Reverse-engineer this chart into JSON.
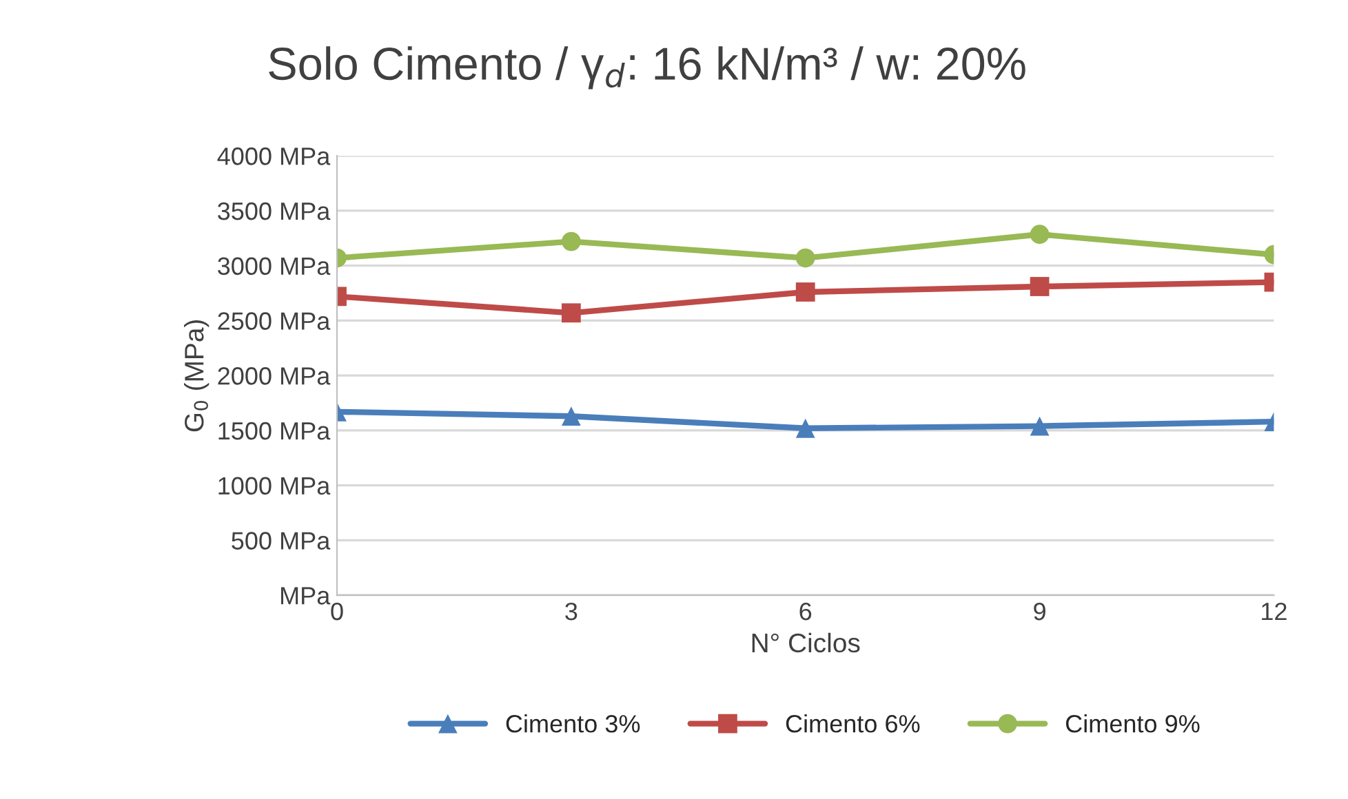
{
  "chart_data": {
    "type": "line",
    "title": "Solo Cimento / γ$_{d}$: 16 kN/m³ / w: 20%",
    "xlabel": "N° Ciclos",
    "ylabel": "G$_{0}$ (MPa)",
    "x": [
      0,
      3,
      6,
      9,
      12
    ],
    "xlim": [
      0,
      12
    ],
    "xticks": [
      0,
      3,
      6,
      9,
      12
    ],
    "ylim": [
      0,
      4000
    ],
    "yticks": [
      {
        "value": 0,
        "label": "MPa"
      },
      {
        "value": 500,
        "label": "500 MPa"
      },
      {
        "value": 1000,
        "label": "1000 MPa"
      },
      {
        "value": 1500,
        "label": "1500 MPa"
      },
      {
        "value": 2000,
        "label": "2000 MPa"
      },
      {
        "value": 2500,
        "label": "2500 MPa"
      },
      {
        "value": 3000,
        "label": "3000 MPa"
      },
      {
        "value": 3500,
        "label": "3500 MPa"
      },
      {
        "value": 4000,
        "label": "4000 MPa"
      }
    ],
    "grid": "y",
    "legend": "bottom",
    "series": [
      {
        "name": "Cimento 3%",
        "color": "#4a7ebb",
        "marker": "triangle",
        "values": [
          1670,
          1630,
          1520,
          1540,
          1580
        ]
      },
      {
        "name": "Cimento 6%",
        "color": "#be4b48",
        "marker": "square",
        "values": [
          2720,
          2570,
          2760,
          2810,
          2850
        ]
      },
      {
        "name": "Cimento 9%",
        "color": "#98b954",
        "marker": "circle",
        "values": [
          3070,
          3220,
          3070,
          3285,
          3100
        ]
      }
    ]
  }
}
